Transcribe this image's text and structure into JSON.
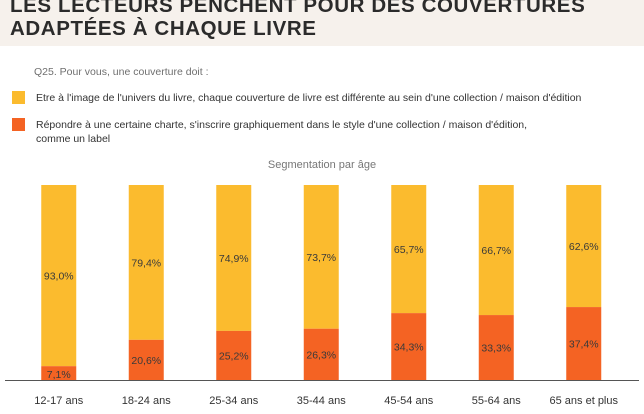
{
  "title": "LES LECTEURS PENCHENT POUR DES COUVERTURES\nADAPTÉES À CHAQUE LIVRE",
  "question": "Q25. Pour vous, une couverture doit :",
  "legend": [
    {
      "label": "Etre à l'image de l'univers du livre, chaque couverture de livre est différente au sein d'une collection / maison d'édition",
      "color": "#fbbb2e"
    },
    {
      "label": "Répondre à une certaine charte, s'inscrire graphiquement dans le style d'une collection / maison d'édition,\ncomme un label",
      "color": "#f46323"
    }
  ],
  "subtitle": "Segmentation par âge",
  "chart_data": {
    "type": "bar",
    "stacked": true,
    "normalized": true,
    "categories": [
      "12-17 ans",
      "18-24 ans",
      "25-34 ans",
      "35-44 ans",
      "45-54 ans",
      "55-64 ans",
      "65 ans et plus"
    ],
    "series": [
      {
        "name": "Répondre à une certaine charte, s'inscrire graphiquement dans le style d'une collection / maison d'édition, comme un label",
        "color": "#f46323",
        "values": [
          7.1,
          20.6,
          25.2,
          26.3,
          34.3,
          33.3,
          37.4
        ],
        "labels": [
          "7,1%",
          "20,6%",
          "25,2%",
          "26,3%",
          "34,3%",
          "33,3%",
          "37,4%"
        ]
      },
      {
        "name": "Etre à l'image de l'univers du livre, chaque couverture de livre est différente au sein d'une collection / maison d'édition",
        "color": "#fbbb2e",
        "values": [
          93.0,
          79.4,
          74.9,
          73.7,
          65.7,
          66.7,
          62.6
        ],
        "labels": [
          "93,0%",
          "79,4%",
          "74,9%",
          "73,7%",
          "65,7%",
          "66,7%",
          "62,6%"
        ]
      }
    ],
    "ylim": [
      0,
      100
    ],
    "grid": false,
    "legend_position": "top"
  }
}
